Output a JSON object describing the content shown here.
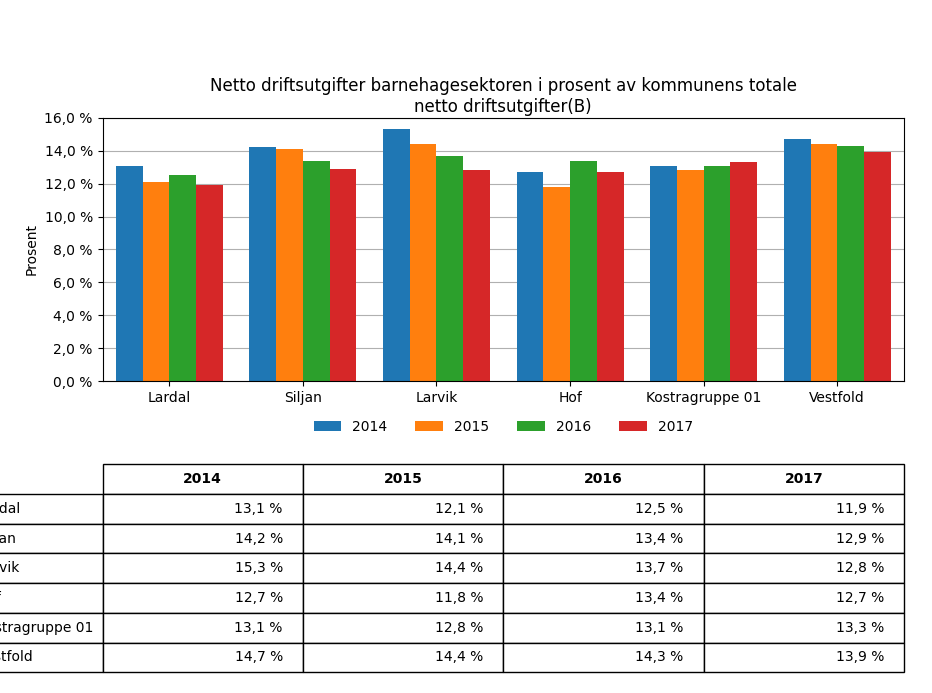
{
  "chart_data": {
    "type": "bar",
    "title": "Netto driftsutgifter barnehagesektoren i prosent av kommunens totale\nnetto driftsutgifter(B)",
    "categories": [
      "Lardal",
      "Siljan",
      "Larvik",
      "Hof",
      "Kostragruppe 01",
      "Vestfold"
    ],
    "series": [
      {
        "name": "2014",
        "values": [
          13.1,
          14.2,
          15.3,
          12.7,
          13.1,
          14.7
        ],
        "value_labels": [
          "13,1 %",
          "14,2 %",
          "15,3 %",
          "12,7 %",
          "13,1 %",
          "14,7 %"
        ]
      },
      {
        "name": "2015",
        "values": [
          12.1,
          14.1,
          14.4,
          11.8,
          12.8,
          14.4
        ],
        "value_labels": [
          "12,1 %",
          "14,1 %",
          "14,4 %",
          "11,8 %",
          "12,8 %",
          "14,4 %"
        ]
      },
      {
        "name": "2016",
        "values": [
          12.5,
          13.4,
          13.7,
          13.4,
          13.1,
          14.3
        ],
        "value_labels": [
          "12,5 %",
          "13,4 %",
          "13,7 %",
          "13,4 %",
          "13,1 %",
          "14,3 %"
        ]
      },
      {
        "name": "2017",
        "values": [
          11.9,
          12.9,
          12.8,
          12.7,
          13.3,
          13.9
        ],
        "value_labels": [
          "11,9 %",
          "12,9 %",
          "12,8 %",
          "12,7 %",
          "13,3 %",
          "13,9 %"
        ]
      }
    ],
    "ylabel": "Prosent",
    "ylim": [
      0,
      16.0
    ],
    "yticks": [
      {
        "value": 0.0,
        "label": "0,0 %"
      },
      {
        "value": 2.0,
        "label": "2,0 %"
      },
      {
        "value": 4.0,
        "label": "4,0 %"
      },
      {
        "value": 6.0,
        "label": "6,0 %"
      },
      {
        "value": 8.0,
        "label": "8,0 %"
      },
      {
        "value": 10.0,
        "label": "10,0 %"
      },
      {
        "value": 12.0,
        "label": "12,0 %"
      },
      {
        "value": 14.0,
        "label": "14,0 %"
      },
      {
        "value": 16.0,
        "label": "16,0 %"
      }
    ],
    "grid": true,
    "legend": "upper center"
  }
}
